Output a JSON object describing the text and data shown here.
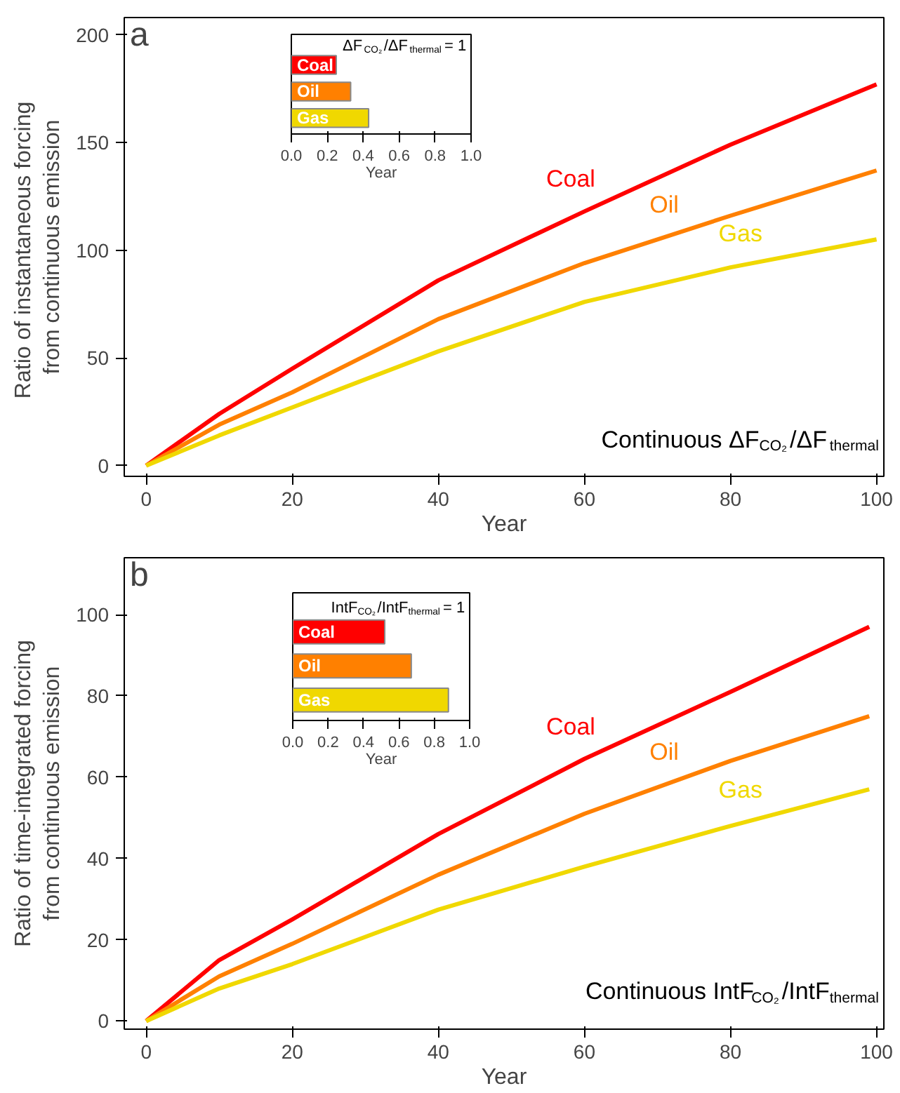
{
  "chart_data": [
    {
      "type": "line",
      "xlabel": "Year",
      "ylabel": "Ratio of instantaneous  forcing\nfrom continuous emission",
      "xlim": [
        -3,
        101
      ],
      "ylim": [
        -5,
        208
      ],
      "xticks": [
        0,
        20,
        40,
        60,
        80,
        100
      ],
      "yticks": [
        0,
        50,
        100,
        150,
        200
      ],
      "annotations": [
        "a",
        "Continuous   ΔF$_{CO₂}$/ΔF$_{thermal}$"
      ],
      "x": [
        0,
        10,
        20,
        40,
        60,
        80,
        100
      ],
      "series": [
        {
          "name": "Coal",
          "color": "#ff0000",
          "values": [
            0,
            24,
            45,
            86,
            118,
            149,
            177
          ]
        },
        {
          "name": "Oil",
          "color": "#ff8000",
          "values": [
            0,
            19,
            34,
            68,
            94,
            116,
            137
          ]
        },
        {
          "name": "Gas",
          "color": "#f0d800",
          "values": [
            0,
            14,
            27,
            53,
            76,
            92,
            105
          ]
        }
      ]
    },
    {
      "type": "bar",
      "orientation": "horizontal",
      "title": "ΔF$_{CO₂}$/ΔF$_{thermal}$ = 1",
      "xlabel": "Year",
      "categories": [
        "Coal",
        "Oil",
        "Gas"
      ],
      "values": [
        0.25,
        0.33,
        0.43
      ],
      "colors": [
        "#ff0000",
        "#ff8000",
        "#f0d800"
      ],
      "xlim": [
        0,
        1
      ],
      "xticks": [
        {
          "value": 0,
          "label": "0.0"
        },
        {
          "value": 0.2,
          "label": "0.2"
        },
        {
          "value": 0.4,
          "label": "0.4"
        },
        {
          "value": 0.6,
          "label": "0.6"
        },
        {
          "value": 0.8,
          "label": "0.8"
        },
        {
          "value": 1,
          "label": "1.0"
        }
      ],
      "tick_labels": "x"
    },
    {
      "type": "line",
      "xlabel": "Year",
      "ylabel": "Ratio of time-integrated forcing\nfrom continuous emission",
      "xlim": [
        -3,
        101
      ],
      "ylim": [
        -2,
        114
      ],
      "xticks": [
        0,
        20,
        40,
        60,
        80,
        100
      ],
      "yticks": [
        0,
        20,
        40,
        60,
        80,
        100
      ],
      "annotations": [
        "b",
        "Continuous   IntF$_{CO₂}$/IntF$_{thermal}$"
      ],
      "x": [
        0,
        10,
        20,
        40,
        60,
        80,
        99
      ],
      "series": [
        {
          "name": "Coal",
          "color": "#ff0000",
          "values": [
            0,
            15,
            25,
            46,
            64.5,
            81,
            97
          ]
        },
        {
          "name": "Oil",
          "color": "#ff8000",
          "values": [
            0,
            11,
            19,
            36,
            51,
            64,
            75
          ]
        },
        {
          "name": "Gas",
          "color": "#f0d800",
          "values": [
            0,
            8,
            14,
            27.4,
            38,
            48,
            57
          ]
        }
      ]
    },
    {
      "type": "bar",
      "orientation": "horizontal",
      "title": "IntF$_{CO₂}$/IntF$_{thermal}$ = 1",
      "xlabel": "Year",
      "categories": [
        "Coal",
        "Oil",
        "Gas"
      ],
      "values": [
        0.52,
        0.67,
        0.88
      ],
      "colors": [
        "#ff0000",
        "#ff8000",
        "#f0d800"
      ],
      "xlim": [
        0,
        1
      ],
      "xticks": [
        {
          "value": 0,
          "label": "0.0"
        },
        {
          "value": 0.2,
          "label": "0.2"
        },
        {
          "value": 0.4,
          "label": "0.4"
        },
        {
          "value": 0.6,
          "label": "0.6"
        },
        {
          "value": 0.8,
          "label": "0.8"
        },
        {
          "value": 1,
          "label": "1.0"
        }
      ],
      "tick_labels": "x"
    }
  ]
}
